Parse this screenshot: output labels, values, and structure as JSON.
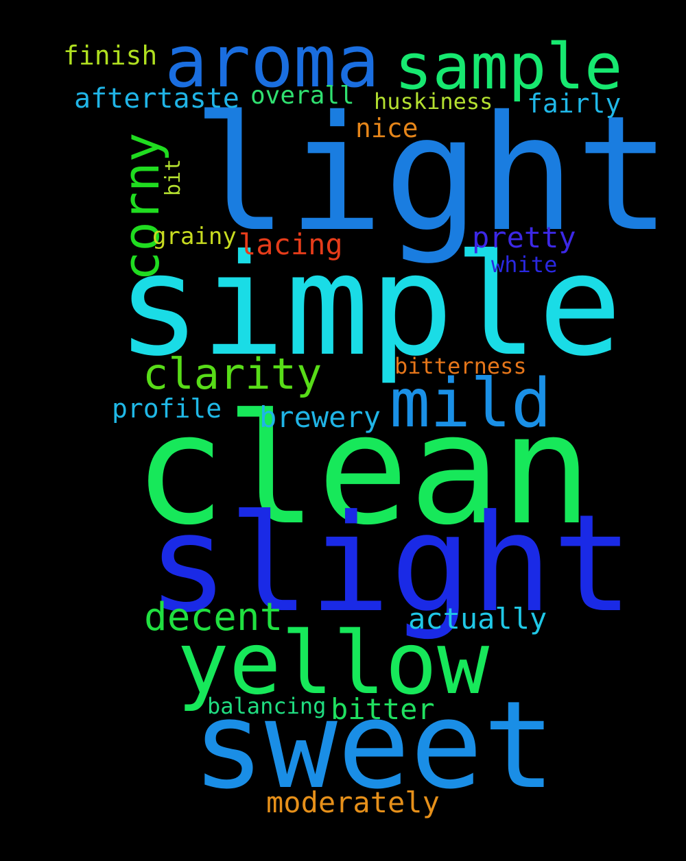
{
  "words": {
    "light": "light",
    "simple": "simple",
    "clean": "clean",
    "slight": "slight",
    "sweet": "sweet",
    "yellow": "yellow",
    "aroma": "aroma",
    "sample": "sample",
    "mild": "mild",
    "corny": "corny",
    "clarity": "clarity",
    "decent": "decent",
    "finish": "finish",
    "aftertaste": "aftertaste",
    "overall": "overall",
    "huskiness": "huskiness",
    "fairly": "fairly",
    "nice": "nice",
    "bit": "bit",
    "grainy": "grainy",
    "lacing": "lacing",
    "pretty": "pretty",
    "white": "white",
    "bitterness": "bitterness",
    "profile": "profile",
    "brewery": "brewery",
    "actually": "actually",
    "balancing": "balancing",
    "bitter": "bitter",
    "moderately": "moderately"
  },
  "colors": {
    "background": "#000000",
    "light": "#1a7de0",
    "simple": "#1adce6",
    "clean": "#17e85a",
    "slight": "#1a2ae6",
    "sweet": "#1a8ee6",
    "yellow": "#17e85a",
    "aroma": "#1a6ee0",
    "sample": "#17e870",
    "mild": "#1a90e6",
    "corny": "#20dc20",
    "clarity": "#58dc18",
    "decent": "#20e040",
    "finish": "#b0e020",
    "aftertaste": "#20b4e6",
    "overall": "#30e070",
    "huskiness": "#b4e030",
    "fairly": "#20b8e8",
    "nice": "#e6861a",
    "bit": "#b4e030",
    "grainy": "#c8dc20",
    "lacing": "#e63c1a",
    "pretty": "#3c28e6",
    "white": "#2a28e0",
    "bitterness": "#e6761a",
    "profile": "#20b8e6",
    "brewery": "#20b4e6",
    "actually": "#20c8e6",
    "balancing": "#20dc80",
    "bitter": "#20e060",
    "moderately": "#e6901a"
  }
}
